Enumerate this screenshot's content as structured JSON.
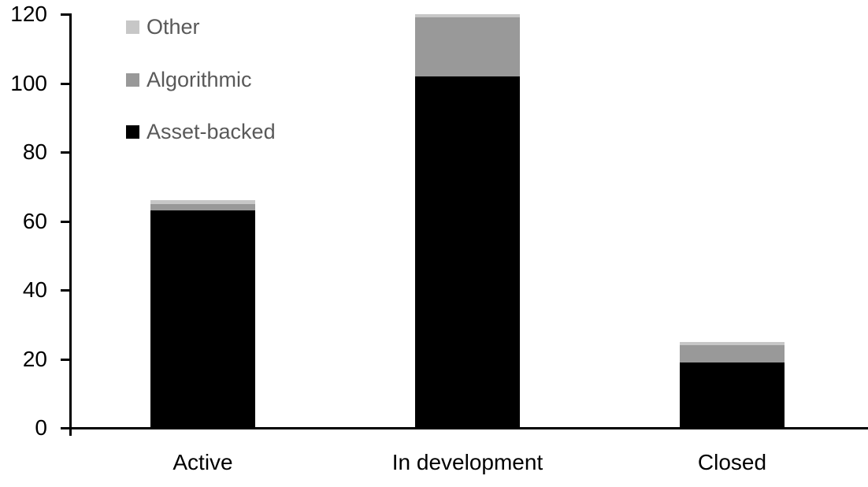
{
  "chart_data": {
    "type": "bar",
    "stacked": true,
    "title": "",
    "categories": [
      "Active",
      "In development",
      "Closed"
    ],
    "series": [
      {
        "name": "Asset-backed",
        "color": "#000000",
        "values": [
          63,
          102,
          19
        ]
      },
      {
        "name": "Algorithmic",
        "color": "#999999",
        "values": [
          2,
          17,
          5
        ]
      },
      {
        "name": "Other",
        "color": "#c7c7c7",
        "values": [
          1,
          1,
          1
        ]
      }
    ],
    "totals": [
      66,
      120,
      25
    ],
    "y_ticks": [
      0,
      20,
      40,
      60,
      80,
      100,
      120
    ],
    "ylim": [
      0,
      120
    ],
    "xlabel": "",
    "ylabel": "",
    "grid": false,
    "legend_position": "top-left-inside",
    "legend_order": [
      "Other",
      "Algorithmic",
      "Asset-backed"
    ]
  },
  "colors": {
    "background": "#ffffff",
    "axis": "#000000",
    "axis_tick_label": "#000000",
    "category_label": "#000000",
    "legend_text": "#595959"
  }
}
